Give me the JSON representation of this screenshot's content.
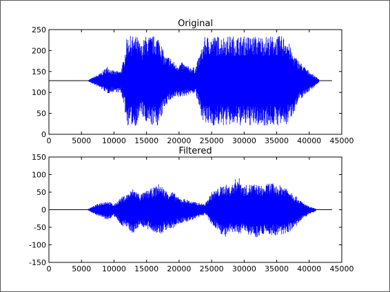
{
  "chart_data": [
    {
      "type": "line",
      "title": "Original",
      "xlabel": "",
      "ylabel": "",
      "xlim": [
        0,
        45000
      ],
      "ylim": [
        0,
        250
      ],
      "grid": false,
      "colors": {
        "signal": "#0000ff",
        "flat": "#000000",
        "axes": "#000000"
      },
      "xticks": [
        0,
        5000,
        10000,
        15000,
        20000,
        25000,
        30000,
        35000,
        40000,
        45000
      ],
      "yticks": [
        0,
        50,
        100,
        150,
        200,
        250
      ],
      "series": [
        {
          "baseline": 128,
          "x_start": 0,
          "x_end": 43500,
          "envelope_x": [
            0,
            6000,
            7000,
            8000,
            9000,
            10000,
            11000,
            11500,
            12000,
            13500,
            14200,
            14800,
            16000,
            17000,
            17800,
            18500,
            19500,
            20500,
            21500,
            22500,
            23200,
            24000,
            28000,
            32000,
            36500,
            37500,
            38500,
            39500,
            40500,
            41500,
            43500
          ],
          "envelope_upper": [
            128,
            129,
            138,
            147,
            163,
            151,
            152,
            179,
            235,
            235,
            213,
            235,
            235,
            235,
            186,
            187,
            168,
            172,
            162,
            160,
            193,
            235,
            235,
            235,
            235,
            192,
            175,
            158,
            144,
            132,
            128
          ],
          "envelope_lower": [
            128,
            127,
            118,
            109,
            97,
            101,
            99,
            74,
            20,
            20,
            51,
            20,
            20,
            20,
            66,
            79,
            85,
            89,
            95,
            98,
            54,
            20,
            20,
            20,
            20,
            47,
            80,
            96,
            109,
            124,
            128
          ]
        }
      ]
    },
    {
      "type": "line",
      "title": "Filtered",
      "xlabel": "",
      "ylabel": "",
      "xlim": [
        0,
        45000
      ],
      "ylim": [
        -150,
        150
      ],
      "grid": false,
      "colors": {
        "signal": "#0000ff",
        "flat": "#000000",
        "axes": "#000000"
      },
      "xticks": [
        0,
        5000,
        10000,
        15000,
        20000,
        25000,
        30000,
        35000,
        40000,
        45000
      ],
      "yticks": [
        -150,
        -100,
        -50,
        0,
        50,
        100,
        150
      ],
      "series": [
        {
          "baseline": 0,
          "x_start": 0,
          "x_end": 43500,
          "envelope_x": [
            0,
            6000,
            7000,
            8000,
            9000,
            10000,
            11000,
            12000,
            13000,
            14000,
            15000,
            16000,
            17000,
            18000,
            19000,
            20000,
            21000,
            22000,
            23000,
            24000,
            25000,
            26000,
            27000,
            28000,
            29000,
            30000,
            31000,
            32000,
            33000,
            34000,
            35000,
            36000,
            37000,
            38000,
            39000,
            40000,
            41000,
            43500
          ],
          "envelope_upper": [
            0,
            2,
            12,
            22,
            26,
            15,
            34,
            45,
            62,
            44,
            54,
            63,
            75,
            55,
            52,
            34,
            31,
            24,
            20,
            17,
            50,
            62,
            73,
            68,
            98,
            68,
            75,
            72,
            67,
            80,
            69,
            72,
            60,
            38,
            21,
            9,
            3,
            0
          ],
          "envelope_lower": [
            0,
            -2,
            -12,
            -22,
            -30,
            -19,
            -44,
            -52,
            -70,
            -43,
            -58,
            -62,
            -75,
            -58,
            -56,
            -40,
            -37,
            -29,
            -24,
            -13,
            -44,
            -58,
            -82,
            -67,
            -70,
            -62,
            -75,
            -79,
            -69,
            -72,
            -77,
            -72,
            -62,
            -48,
            -27,
            -13,
            -4,
            0
          ]
        }
      ]
    }
  ]
}
